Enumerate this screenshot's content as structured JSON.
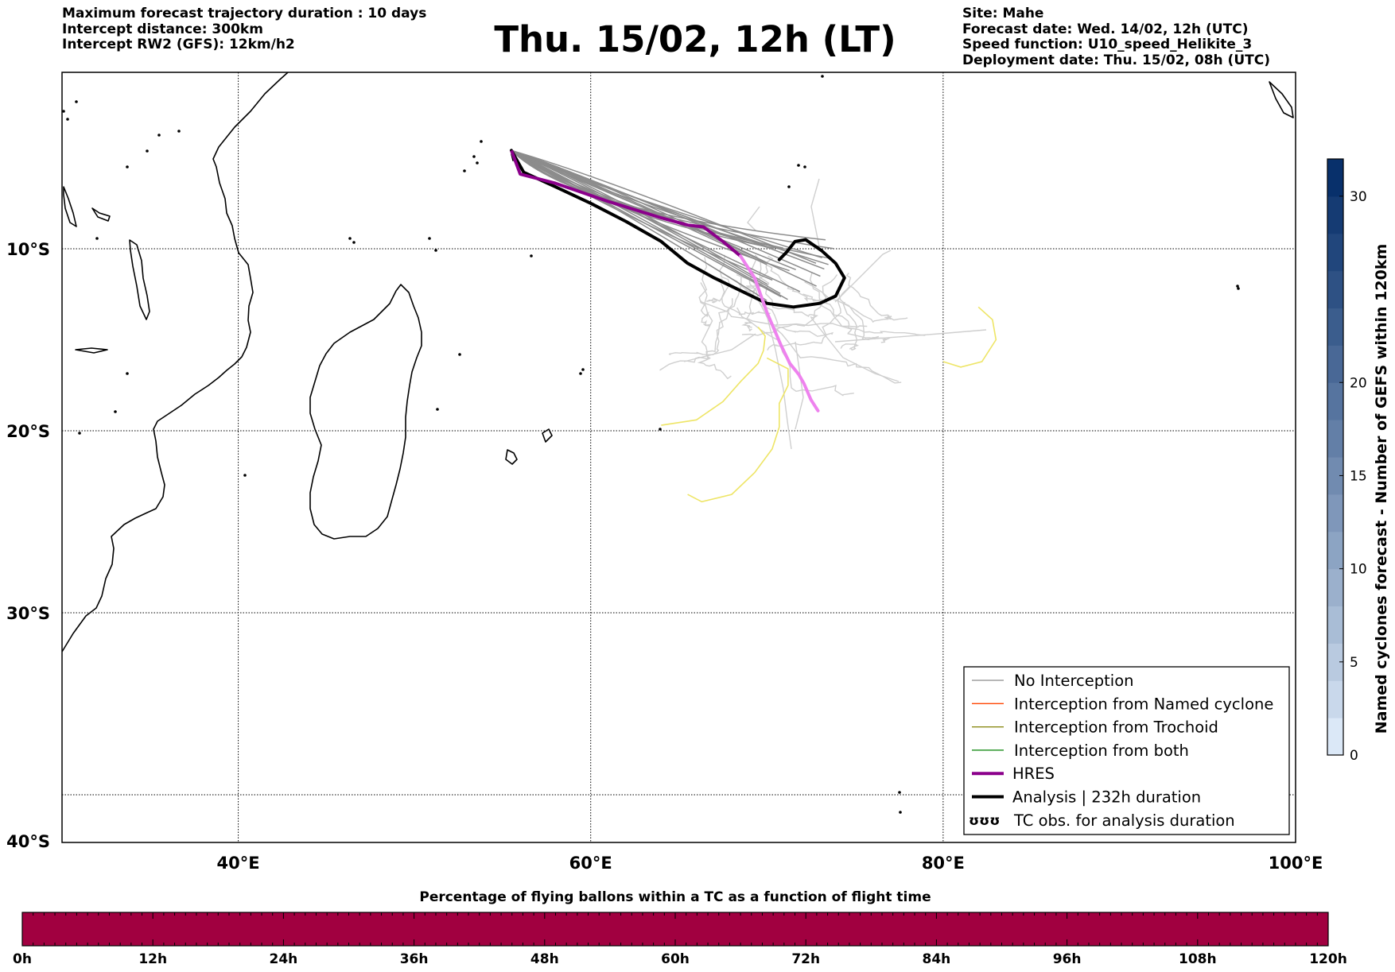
{
  "header": {
    "left": [
      "Maximum forecast trajectory duration : 10 days",
      "Intercept distance: 300km",
      "Intercept RW2 (GFS):  12km/h2"
    ],
    "title": "Thu. 15/02, 12h (LT)",
    "right": [
      "Site: Mahe",
      "Forecast date: Wed. 14/02, 12h (UTC)",
      "Speed function: U10_speed_Helikite_3",
      "Deployment date: Thu. 15/02, 08h (UTC)"
    ]
  },
  "map": {
    "lon_range": [
      30,
      100
    ],
    "lat_range": [
      -40,
      1
    ],
    "lon_ticks": [
      {
        "value": 40,
        "label": "40°E"
      },
      {
        "value": 60,
        "label": "60°E"
      },
      {
        "value": 80,
        "label": "80°E"
      },
      {
        "value": 100,
        "label": "100°E"
      }
    ],
    "lat_ticks": [
      {
        "value": -10,
        "label": "10°S"
      },
      {
        "value": -20,
        "label": "20°S"
      },
      {
        "value": -30,
        "label": "30°S"
      },
      {
        "value": -40,
        "label": "40°S"
      }
    ],
    "launch_site": {
      "lon": 55.5,
      "lat": -4.6
    },
    "hres_track": [
      [
        55.5,
        -4.6
      ],
      [
        56,
        -5.9
      ],
      [
        58,
        -6.4
      ],
      [
        61,
        -7.4
      ],
      [
        64,
        -8.3
      ],
      [
        65.5,
        -8.7
      ],
      [
        66.4,
        -8.8
      ],
      [
        67.5,
        -9.6
      ],
      [
        68.5,
        -10.4
      ],
      [
        69.3,
        -11.6
      ],
      [
        70,
        -13.5
      ],
      [
        70.8,
        -15.3
      ],
      [
        71.3,
        -16.3
      ],
      [
        71.8,
        -16.9
      ],
      [
        72.1,
        -17.4
      ],
      [
        72.5,
        -18.3
      ],
      [
        72.9,
        -18.9
      ]
    ],
    "analysis_track": [
      [
        55.5,
        -4.6
      ],
      [
        56.2,
        -5.8
      ],
      [
        58,
        -6.6
      ],
      [
        60,
        -7.5
      ],
      [
        62,
        -8.5
      ],
      [
        64,
        -9.6
      ],
      [
        65.5,
        -10.8
      ],
      [
        67,
        -11.6
      ],
      [
        68.5,
        -12.3
      ],
      [
        70,
        -13
      ],
      [
        71.5,
        -13.2
      ],
      [
        73,
        -13
      ],
      [
        73.9,
        -12.6
      ],
      [
        74.4,
        -11.6
      ],
      [
        73.9,
        -10.8
      ],
      [
        73.1,
        -10.1
      ],
      [
        72.2,
        -9.5
      ],
      [
        71.6,
        -9.6
      ],
      [
        71.1,
        -10.2
      ],
      [
        70.7,
        -10.6
      ]
    ],
    "yellow_tracks": [
      [
        [
          64,
          -19.7
        ],
        [
          66,
          -19.4
        ],
        [
          67.5,
          -18.4
        ],
        [
          68.5,
          -17.3
        ],
        [
          69.5,
          -16.3
        ],
        [
          69.8,
          -15.6
        ],
        [
          69.9,
          -14.8
        ],
        [
          69.5,
          -14.3
        ]
      ],
      [
        [
          70,
          -16
        ],
        [
          71.2,
          -16.6
        ],
        [
          71.2,
          -17.5
        ],
        [
          70.7,
          -18.5
        ],
        [
          70.7,
          -19.8
        ],
        [
          70.3,
          -21
        ],
        [
          69.3,
          -22.3
        ],
        [
          68,
          -23.5
        ],
        [
          66.3,
          -23.9
        ],
        [
          65.5,
          -23.5
        ]
      ],
      [
        [
          80,
          -16.2
        ],
        [
          81,
          -16.5
        ],
        [
          82.2,
          -16.2
        ],
        [
          83,
          -15
        ],
        [
          82.8,
          -13.9
        ],
        [
          82,
          -13.2
        ]
      ]
    ],
    "colors": {
      "no_interception": "#8c8c8c",
      "named_cyclone": "#ff4500",
      "trochoid": "#808000",
      "both": "#008000",
      "hres": "#8b008b",
      "hres_late": "#ee82ee",
      "analysis": "#000000",
      "yellow": "#eee566",
      "light_gray": "#cfcfcf"
    }
  },
  "legend": {
    "items": [
      {
        "label": "No Interception",
        "kind": "thin",
        "color": "#8c8c8c"
      },
      {
        "label": "Interception from Named cyclone",
        "kind": "thin",
        "color": "#ff4500"
      },
      {
        "label": "Interception from Trochoid",
        "kind": "thin",
        "color": "#808000"
      },
      {
        "label": "Interception from both",
        "kind": "thin",
        "color": "#008000"
      },
      {
        "label": "HRES",
        "kind": "thick",
        "color": "#8b008b"
      },
      {
        "label": "Analysis | 232h duration",
        "kind": "thick",
        "color": "#000000"
      },
      {
        "label": "TC obs. for analysis duration",
        "kind": "symbol",
        "color": "#000000"
      }
    ]
  },
  "colorbar_right": {
    "label": "Named cyclones forecast - Number of GEFS within 120km",
    "range": [
      0,
      32
    ],
    "ticks": [
      0,
      5,
      10,
      15,
      20,
      30
    ],
    "levels": 16,
    "color_low": "#dbe8f7",
    "color_high": "#08306b"
  },
  "colorbar_bottom": {
    "title": "Percentage of flying ballons within a TC as a function of flight time",
    "color": "#a10040",
    "ticks": [
      "0h",
      "12h",
      "24h",
      "36h",
      "48h",
      "60h",
      "72h",
      "84h",
      "96h",
      "108h",
      "120h"
    ]
  }
}
